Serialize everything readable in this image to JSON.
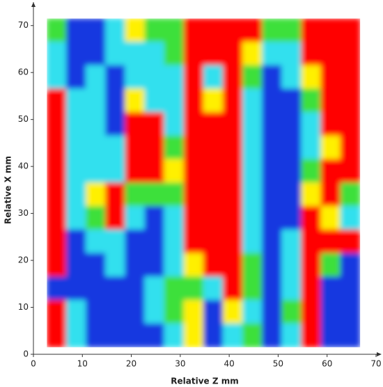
{
  "chart_data": {
    "type": "contour",
    "xlabel": "Relative Z mm",
    "ylabel": "Relative X mm",
    "xlim": [
      0,
      70
    ],
    "ylim": [
      0,
      75
    ],
    "xticks": [
      0,
      10,
      20,
      30,
      40,
      50,
      60,
      70
    ],
    "yticks": [
      0,
      10,
      20,
      30,
      40,
      50,
      60,
      70
    ],
    "colors": [
      "#1238e0",
      "#30e0ee",
      "#3ee03a",
      "#fff000",
      "#ff0000"
    ],
    "x": [
      4.75,
      8.75,
      12.75,
      16.75,
      20.75,
      24.75,
      28.75,
      32.75,
      36.75,
      40.75,
      44.75,
      48.75,
      52.75,
      56.75,
      60.75,
      64.75
    ],
    "y": [
      69,
      64,
      59,
      54,
      49,
      44,
      39,
      34,
      29,
      24,
      19,
      14,
      9,
      4
    ],
    "z": [
      [
        2,
        0,
        0,
        1,
        3,
        2,
        2,
        4,
        4,
        4,
        4,
        2,
        2,
        4,
        4,
        4
      ],
      [
        1,
        0,
        0,
        1,
        1,
        1,
        2,
        4,
        4,
        4,
        3,
        1,
        1,
        4,
        4,
        4
      ],
      [
        1,
        0,
        1,
        0,
        1,
        1,
        1,
        4,
        1,
        4,
        2,
        0,
        1,
        3,
        4,
        4
      ],
      [
        4,
        1,
        1,
        0,
        3,
        1,
        1,
        4,
        3,
        4,
        1,
        0,
        0,
        2,
        4,
        4
      ],
      [
        4,
        1,
        1,
        0,
        4,
        4,
        1,
        4,
        4,
        4,
        1,
        0,
        0,
        1,
        4,
        4
      ],
      [
        4,
        1,
        1,
        1,
        4,
        4,
        2,
        4,
        4,
        4,
        1,
        0,
        0,
        1,
        3,
        4
      ],
      [
        4,
        1,
        1,
        1,
        4,
        4,
        3,
        4,
        4,
        4,
        1,
        0,
        0,
        2,
        4,
        4
      ],
      [
        4,
        1,
        3,
        4,
        2,
        2,
        2,
        4,
        4,
        4,
        1,
        0,
        0,
        3,
        4,
        2
      ],
      [
        4,
        1,
        2,
        4,
        1,
        0,
        1,
        4,
        4,
        4,
        1,
        0,
        0,
        4,
        3,
        1
      ],
      [
        4,
        0,
        1,
        1,
        0,
        0,
        1,
        4,
        4,
        4,
        1,
        0,
        1,
        4,
        4,
        4
      ],
      [
        4,
        0,
        0,
        1,
        0,
        0,
        1,
        3,
        4,
        4,
        2,
        0,
        1,
        4,
        2,
        0
      ],
      [
        0,
        0,
        0,
        0,
        0,
        1,
        2,
        2,
        1,
        4,
        2,
        0,
        1,
        4,
        0,
        0
      ],
      [
        4,
        1,
        0,
        0,
        0,
        1,
        2,
        3,
        0,
        3,
        1,
        0,
        2,
        4,
        0,
        0
      ],
      [
        4,
        1,
        0,
        0,
        0,
        0,
        1,
        3,
        0,
        1,
        2,
        0,
        1,
        4,
        0,
        0
      ]
    ]
  }
}
